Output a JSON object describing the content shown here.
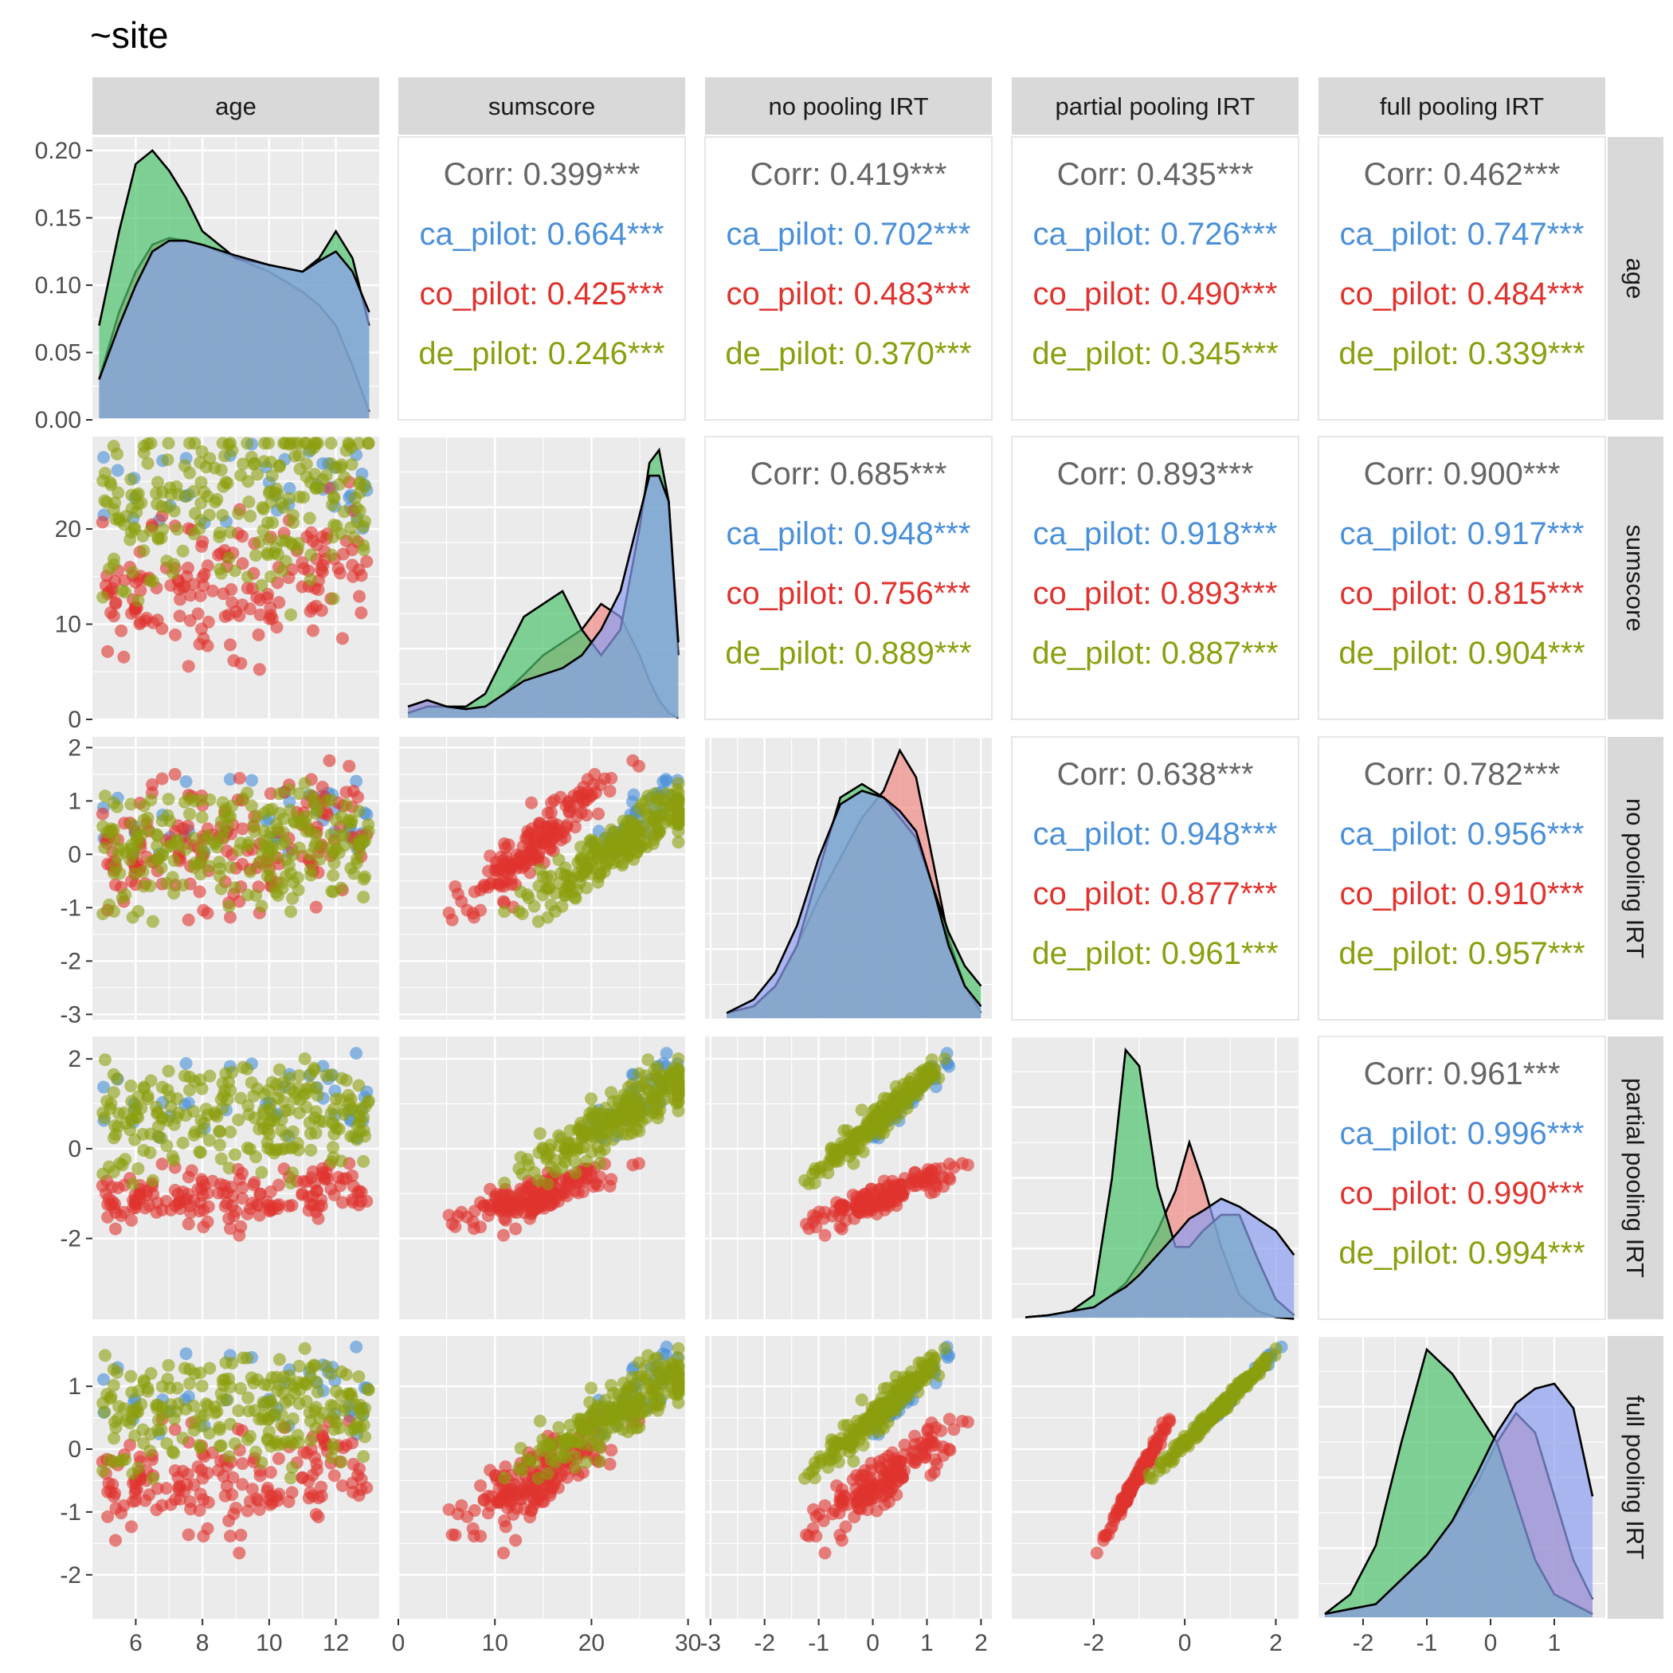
{
  "title": "~site",
  "variables": [
    "age",
    "sumscore",
    "no pooling IRT",
    "partial pooling IRT",
    "full pooling IRT"
  ],
  "colors": {
    "ca_pilot": "#4a90d9",
    "co_pilot": "#e0332e",
    "de_pilot": "#8c9f0e",
    "overall": "#666666",
    "density_fills": [
      "#f08a84",
      "#4fc36d",
      "#8c9ef0"
    ],
    "panel_bg": "#ebebeb",
    "strip_bg": "#d9d9d9",
    "grid": "#ffffff"
  },
  "chart_data": {
    "type": "scatter-matrix",
    "groups": [
      "ca_pilot",
      "co_pilot",
      "de_pilot"
    ],
    "axes": {
      "age": {
        "ticks": [
          6,
          8,
          10,
          12
        ],
        "range": [
          4.7,
          13.3
        ]
      },
      "sumscore": {
        "ticks": [
          0,
          10,
          20,
          30
        ],
        "range": [
          0,
          29.7
        ]
      },
      "no pooling IRT": {
        "ticks": [
          -3,
          -2,
          -1,
          0,
          1,
          2
        ],
        "range": [
          -3.1,
          2.2
        ]
      },
      "partial pooling IRT": {
        "ticks": [
          -2,
          0,
          2
        ],
        "range": [
          -3.8,
          2.5
        ]
      },
      "full pooling IRT": {
        "ticks": [
          -2,
          -1,
          0,
          1
        ],
        "range": [
          -2.7,
          1.8
        ]
      }
    },
    "age_density_axis": {
      "ticks": [
        "0.00",
        "0.05",
        "0.10",
        "0.15",
        "0.20"
      ],
      "values": [
        0,
        0.05,
        0.1,
        0.15,
        0.2
      ],
      "range": [
        0,
        0.21
      ]
    },
    "correlations": [
      {
        "row": "age",
        "col": "sumscore",
        "overall": "Corr: 0.399***",
        "ca_pilot": "ca_pilot: 0.664***",
        "co_pilot": "co_pilot: 0.425***",
        "de_pilot": "de_pilot: 0.246***"
      },
      {
        "row": "age",
        "col": "no pooling IRT",
        "overall": "Corr: 0.419***",
        "ca_pilot": "ca_pilot: 0.702***",
        "co_pilot": "co_pilot: 0.483***",
        "de_pilot": "de_pilot: 0.370***"
      },
      {
        "row": "age",
        "col": "partial pooling IRT",
        "overall": "Corr: 0.435***",
        "ca_pilot": "ca_pilot: 0.726***",
        "co_pilot": "co_pilot: 0.490***",
        "de_pilot": "de_pilot: 0.345***"
      },
      {
        "row": "age",
        "col": "full pooling IRT",
        "overall": "Corr: 0.462***",
        "ca_pilot": "ca_pilot: 0.747***",
        "co_pilot": "co_pilot: 0.484***",
        "de_pilot": "de_pilot: 0.339***"
      },
      {
        "row": "sumscore",
        "col": "no pooling IRT",
        "overall": "Corr: 0.685***",
        "ca_pilot": "ca_pilot: 0.948***",
        "co_pilot": "co_pilot: 0.756***",
        "de_pilot": "de_pilot: 0.889***"
      },
      {
        "row": "sumscore",
        "col": "partial pooling IRT",
        "overall": "Corr: 0.893***",
        "ca_pilot": "ca_pilot: 0.918***",
        "co_pilot": "co_pilot: 0.893***",
        "de_pilot": "de_pilot: 0.887***"
      },
      {
        "row": "sumscore",
        "col": "full pooling IRT",
        "overall": "Corr: 0.900***",
        "ca_pilot": "ca_pilot: 0.917***",
        "co_pilot": "co_pilot: 0.815***",
        "de_pilot": "de_pilot: 0.904***"
      },
      {
        "row": "no pooling IRT",
        "col": "partial pooling IRT",
        "overall": "Corr: 0.638***",
        "ca_pilot": "ca_pilot: 0.948***",
        "co_pilot": "co_pilot: 0.877***",
        "de_pilot": "de_pilot: 0.961***"
      },
      {
        "row": "no pooling IRT",
        "col": "full pooling IRT",
        "overall": "Corr: 0.782***",
        "ca_pilot": "ca_pilot: 0.956***",
        "co_pilot": "co_pilot: 0.910***",
        "de_pilot": "de_pilot: 0.957***"
      },
      {
        "row": "partial pooling IRT",
        "col": "full pooling IRT",
        "overall": "Corr: 0.961***",
        "ca_pilot": "ca_pilot: 0.996***",
        "co_pilot": "co_pilot: 0.990***",
        "de_pilot": "de_pilot: 0.994***"
      }
    ],
    "densities": [
      {
        "variable": "age",
        "x": [
          4.9,
          5.5,
          6.0,
          6.5,
          7.0,
          7.5,
          8.0,
          9.0,
          10.0,
          11.0,
          11.5,
          12.0,
          12.5,
          13.0
        ],
        "ca_pilot": [
          0.03,
          0.07,
          0.1,
          0.125,
          0.133,
          0.133,
          0.13,
          0.122,
          0.115,
          0.11,
          0.118,
          0.125,
          0.11,
          0.08
        ],
        "co_pilot": [
          0.03,
          0.08,
          0.11,
          0.13,
          0.135,
          0.133,
          0.13,
          0.12,
          0.11,
          0.095,
          0.085,
          0.07,
          0.04,
          0.006
        ],
        "de_pilot": [
          0.07,
          0.14,
          0.19,
          0.2,
          0.185,
          0.165,
          0.14,
          0.12,
          0.115,
          0.11,
          0.12,
          0.14,
          0.12,
          0.07
        ]
      },
      {
        "variable": "sumscore",
        "x": [
          1,
          3,
          5,
          7,
          9,
          11,
          13,
          15,
          17,
          19,
          21,
          23,
          25,
          26,
          27,
          28,
          29
        ],
        "ca_pilot": [
          0.01,
          0.015,
          0.01,
          0.008,
          0.01,
          0.02,
          0.03,
          0.035,
          0.04,
          0.05,
          0.07,
          0.1,
          0.16,
          0.19,
          0.19,
          0.17,
          0.06
        ],
        "co_pilot": [
          0.01,
          0.015,
          0.01,
          0.008,
          0.01,
          0.02,
          0.035,
          0.05,
          0.06,
          0.07,
          0.09,
          0.08,
          0.05,
          0.03,
          0.015,
          0.005,
          0.001
        ],
        "de_pilot": [
          0.005,
          0.01,
          0.01,
          0.01,
          0.02,
          0.05,
          0.08,
          0.09,
          0.1,
          0.07,
          0.05,
          0.07,
          0.15,
          0.2,
          0.21,
          0.17,
          0.05
        ]
      },
      {
        "variable": "no pooling IRT",
        "x": [
          -2.7,
          -2.2,
          -1.8,
          -1.4,
          -1.0,
          -0.6,
          -0.2,
          0.2,
          0.5,
          0.8,
          1.1,
          1.4,
          1.7,
          2.0
        ],
        "ca_pilot": [
          0.01,
          0.03,
          0.07,
          0.14,
          0.24,
          0.32,
          0.34,
          0.33,
          0.31,
          0.28,
          0.2,
          0.11,
          0.05,
          0.02
        ],
        "co_pilot": [
          0.01,
          0.02,
          0.05,
          0.11,
          0.18,
          0.24,
          0.3,
          0.34,
          0.4,
          0.36,
          0.24,
          0.12,
          0.05,
          0.01
        ],
        "de_pilot": [
          0.01,
          0.02,
          0.05,
          0.11,
          0.22,
          0.33,
          0.35,
          0.33,
          0.3,
          0.27,
          0.2,
          0.13,
          0.08,
          0.05
        ]
      },
      {
        "variable": "partial pooling IRT",
        "x": [
          -3.5,
          -3.0,
          -2.5,
          -2.0,
          -1.6,
          -1.3,
          -1.0,
          -0.6,
          -0.2,
          0.1,
          0.4,
          0.8,
          1.2,
          1.6,
          2.0,
          2.4
        ],
        "ca_pilot": [
          0.005,
          0.01,
          0.02,
          0.03,
          0.06,
          0.08,
          0.11,
          0.16,
          0.21,
          0.25,
          0.27,
          0.3,
          0.28,
          0.25,
          0.22,
          0.16
        ],
        "co_pilot": [
          0.005,
          0.01,
          0.02,
          0.03,
          0.06,
          0.09,
          0.14,
          0.22,
          0.32,
          0.44,
          0.34,
          0.18,
          0.06,
          0.02,
          0.005,
          0.001
        ],
        "de_pilot": [
          0.005,
          0.01,
          0.02,
          0.06,
          0.35,
          0.67,
          0.63,
          0.33,
          0.18,
          0.18,
          0.22,
          0.26,
          0.26,
          0.15,
          0.05,
          0.01
        ]
      },
      {
        "variable": "full pooling IRT",
        "x": [
          -2.6,
          -2.2,
          -1.8,
          -1.4,
          -1.0,
          -0.6,
          -0.2,
          0.1,
          0.4,
          0.7,
          1.0,
          1.3,
          1.6
        ],
        "ca_pilot": [
          0.01,
          0.02,
          0.03,
          0.08,
          0.13,
          0.2,
          0.3,
          0.38,
          0.44,
          0.47,
          0.48,
          0.43,
          0.25
        ],
        "co_pilot": [
          0.01,
          0.02,
          0.03,
          0.08,
          0.13,
          0.2,
          0.28,
          0.36,
          0.42,
          0.38,
          0.25,
          0.12,
          0.04
        ],
        "de_pilot": [
          0.01,
          0.05,
          0.15,
          0.36,
          0.55,
          0.5,
          0.42,
          0.36,
          0.24,
          0.12,
          0.05,
          0.03,
          0.01
        ]
      }
    ],
    "scatter_relations": {
      "sumscore": {
        "ca_pilot": {
          "a": 24,
          "b": 0.45,
          "sd": 2.5
        },
        "co_pilot": {
          "a": 14,
          "b": 0.5,
          "sd": 3.2
        },
        "de_pilot": {
          "a": 23,
          "b": 0.5,
          "sd": 4.5
        }
      },
      "no pooling IRT": {
        "ca_pilot": {
          "a": 0.3,
          "slope_sumscore": 0.13,
          "ref": 22
        },
        "co_pilot": {
          "a": 0.5,
          "slope_sumscore": 0.16,
          "ref": 16
        },
        "de_pilot": {
          "a": 0.05,
          "slope_sumscore": 0.11,
          "ref": 22
        }
      },
      "partial pooling IRT": {
        "ca_pilot": {
          "a": 0.4,
          "slope_np": 1.1
        },
        "co_pilot": {
          "a": -1.15,
          "slope_np": 0.45
        },
        "de_pilot": {
          "a": 0.55,
          "slope_np": 1.05
        }
      },
      "full pooling IRT": {
        "ca_pilot": {
          "a": 0.1,
          "slope_pp": 0.72
        },
        "co_pilot": {
          "a": 0.9,
          "slope_pp": 1.3
        },
        "de_pilot": {
          "a": 0.1,
          "slope_pp": 0.72
        }
      }
    }
  }
}
